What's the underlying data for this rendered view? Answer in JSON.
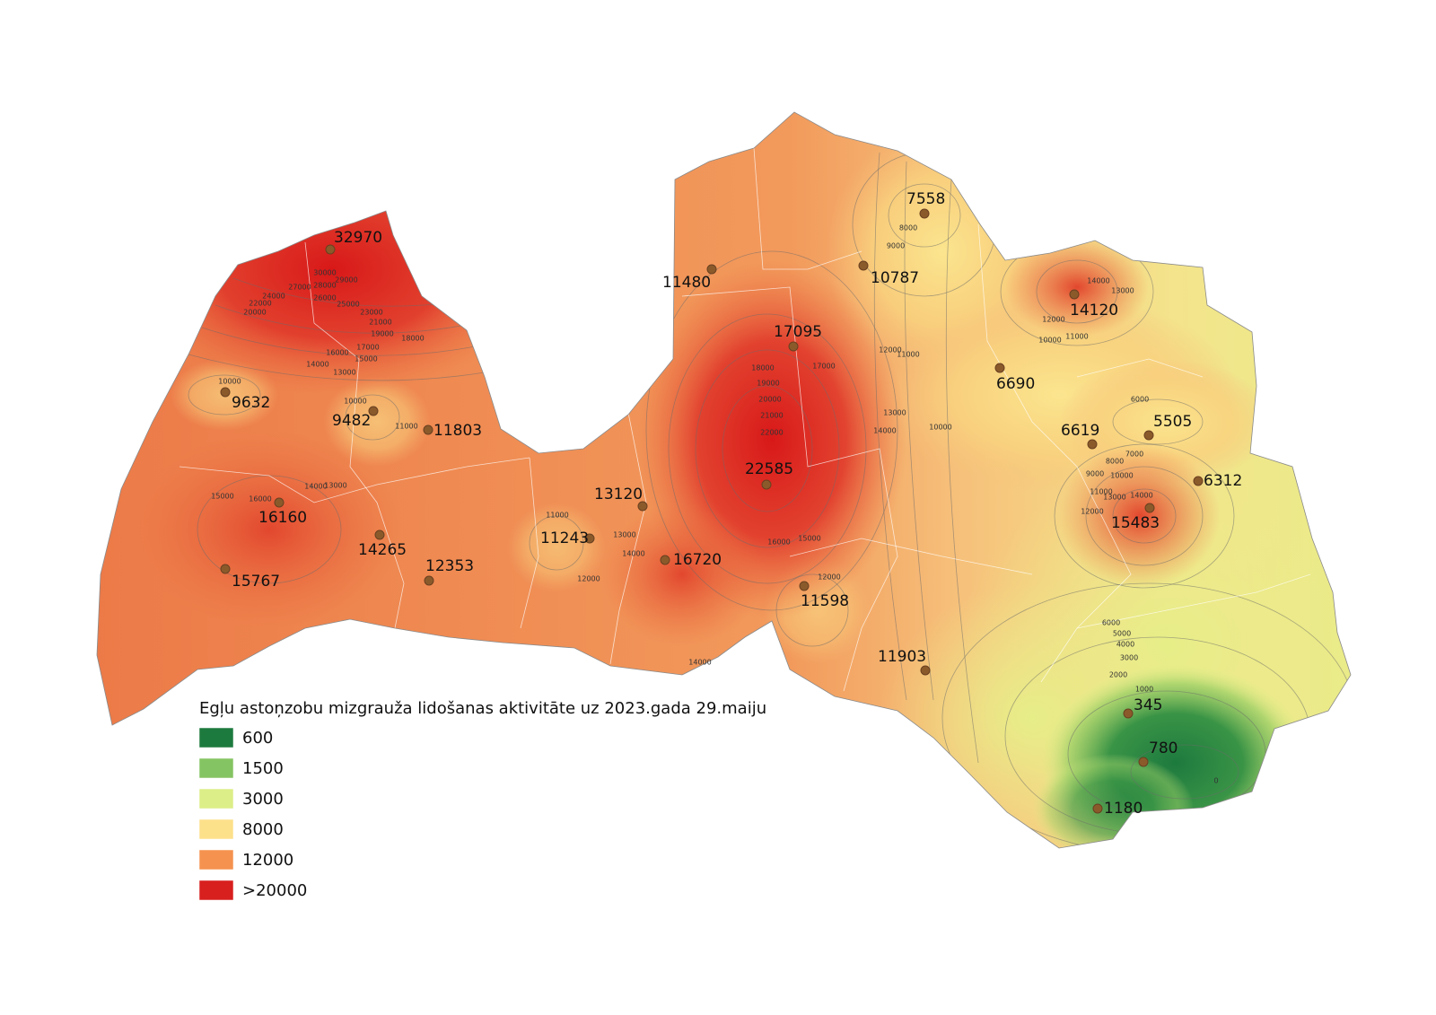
{
  "legend": {
    "title": "Egļu astoņzobu mizgrauža lidošanas aktivitāte uz 2023.gada 29.maiju",
    "items": [
      {
        "label": "600",
        "color": "#1d7a3e"
      },
      {
        "label": "1500",
        "color": "#85c462"
      },
      {
        "label": "3000",
        "color": "#dcee87"
      },
      {
        "label": "8000",
        "color": "#fde08a"
      },
      {
        "label": "12000",
        "color": "#f5924f"
      },
      {
        "label": ">20000",
        "color": "#d8201f"
      }
    ]
  },
  "points": [
    {
      "label": "32970"
    },
    {
      "label": "11480"
    },
    {
      "label": "10787"
    },
    {
      "label": "7558"
    },
    {
      "label": "14120"
    },
    {
      "label": "17095"
    },
    {
      "label": "6690"
    },
    {
      "label": "9632"
    },
    {
      "label": "9482"
    },
    {
      "label": "11803"
    },
    {
      "label": "6619"
    },
    {
      "label": "5505"
    },
    {
      "label": "22585"
    },
    {
      "label": "6312"
    },
    {
      "label": "13120"
    },
    {
      "label": "16160"
    },
    {
      "label": "15483"
    },
    {
      "label": "14265"
    },
    {
      "label": "11243"
    },
    {
      "label": "16720"
    },
    {
      "label": "12353"
    },
    {
      "label": "15767"
    },
    {
      "label": "11598"
    },
    {
      "label": "11903"
    },
    {
      "label": "345"
    },
    {
      "label": "780"
    },
    {
      "label": "1180"
    }
  ],
  "contour_labels": [
    "30000",
    "29000",
    "27000",
    "28000",
    "24000",
    "26000",
    "25000",
    "22000",
    "23000",
    "20000",
    "21000",
    "19000",
    "18000",
    "17000",
    "16000",
    "15000",
    "14000",
    "13000",
    "10000",
    "10000",
    "11000",
    "15000",
    "16000",
    "14000",
    "13000",
    "11000",
    "13000",
    "14000",
    "12000",
    "18000",
    "19000",
    "20000",
    "21000",
    "22000",
    "17000",
    "16000",
    "15000",
    "12000",
    "14000",
    "12000",
    "13000",
    "14000",
    "11000",
    "10000",
    "9000",
    "8000",
    "14000",
    "13000",
    "12000",
    "11000",
    "10000",
    "6000",
    "7000",
    "8000",
    "9000",
    "10000",
    "11000",
    "12000",
    "13000",
    "14000",
    "6000",
    "5000",
    "4000",
    "3000",
    "2000",
    "1000",
    "0"
  ]
}
